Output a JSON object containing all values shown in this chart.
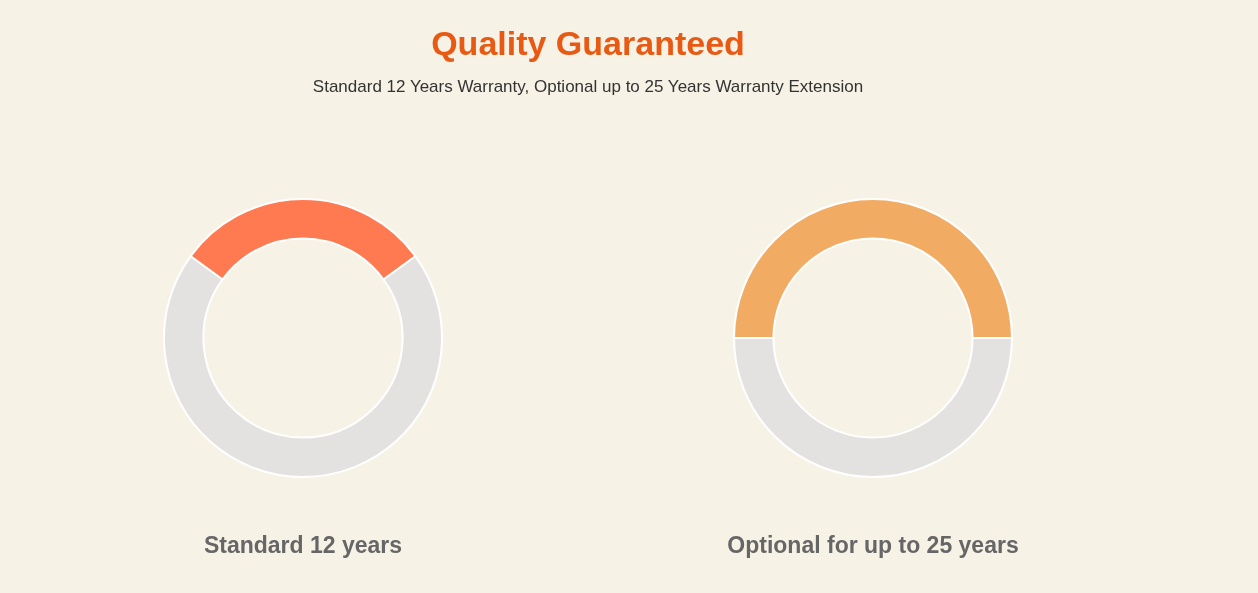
{
  "chart_data": [
    {
      "type": "other",
      "title": "Quality Guaranteed",
      "subtitle": "Standard 12 Years Warranty, Optional up to 25 Years Warranty Extension"
    },
    {
      "type": "donut",
      "title": "Standard 12 years",
      "categories": [
        null,
        null
      ],
      "values": [
        30,
        70
      ],
      "colors": [
        "#ff7a50",
        "#e4e2e0"
      ]
    },
    {
      "type": "donut",
      "title": "Optional for up to 25 years",
      "categories": [
        null,
        null
      ],
      "values": [
        50,
        50
      ],
      "colors": [
        "#f2ab63",
        "#e4e2e0"
      ]
    }
  ]
}
